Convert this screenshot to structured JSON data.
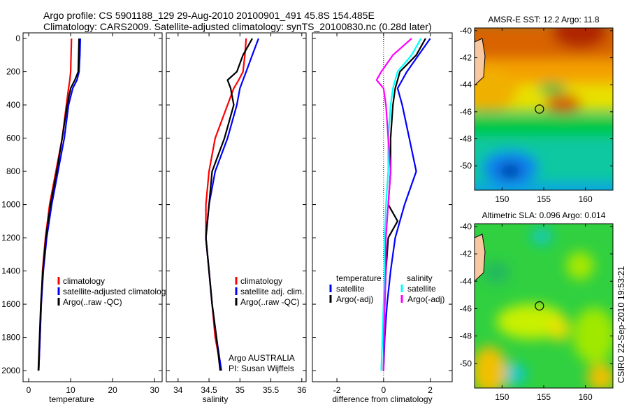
{
  "title_line1": "Argo profile: CS 5901188_129 29-Aug-2010 20100901_491 45.8S 154.485E",
  "title_line2": "Climatology: CARS2009. Satellite-adjusted climatology: synTS_20100830.nc (0.28d later)",
  "side_stamp": "CSIRO 22-Sep-2010 19:53:21",
  "colors": {
    "climatology": "#ff0000",
    "satellite": "#0000ff",
    "argo": "#000000",
    "sal_satellite": "#00ffff",
    "sal_argo": "#ff00ff"
  },
  "chart_data": [
    {
      "type": "line",
      "xlabel": "temperature",
      "ylabel": "",
      "xlim": [
        -1.33,
        31.8
      ],
      "ylim": [
        2067,
        -34
      ],
      "xticks": [
        0,
        10,
        20,
        30
      ],
      "yticks": [
        0,
        200,
        400,
        600,
        800,
        1000,
        1200,
        1400,
        1600,
        1800,
        2000
      ],
      "legend": [
        "climatology",
        "satellite-adjusted climatology",
        "Argo(..raw -QC)"
      ],
      "legend_placement": "lower-right",
      "depth": [
        0,
        100,
        200,
        250,
        300,
        400,
        600,
        800,
        1000,
        1200,
        1400,
        1600,
        1800,
        2000
      ],
      "series": [
        {
          "name": "climatology",
          "color": "#ff0000",
          "values": [
            10.2,
            10.1,
            10.0,
            9.8,
            9.5,
            9.0,
            8.0,
            6.5,
            5.0,
            4.0,
            3.3,
            3.0,
            2.7,
            2.4
          ]
        },
        {
          "name": "satellite-adjusted climatology",
          "color": "#0000ff",
          "values": [
            12.3,
            12.2,
            12.0,
            11.5,
            10.5,
            9.5,
            8.5,
            7.0,
            5.5,
            4.3,
            3.5,
            3.0,
            2.7,
            2.4
          ]
        },
        {
          "name": "Argo(..raw -QC)",
          "color": "#000000",
          "values": [
            12.0,
            11.9,
            11.8,
            11.0,
            10.0,
            9.2,
            8.0,
            6.7,
            5.2,
            4.1,
            3.4,
            2.9,
            2.6,
            2.3
          ]
        }
      ]
    },
    {
      "type": "line",
      "xlabel": "salinity",
      "xlim": [
        33.81,
        36.07
      ],
      "ylim": [
        2067,
        -34
      ],
      "xticks": [
        34,
        34.5,
        35,
        35.5,
        36
      ],
      "legend": [
        "climatology",
        "satellite adj. clim.",
        "Argo(..raw -QC)"
      ],
      "legend_placement": "lower-right",
      "annotation": [
        "Argo AUSTRALIA",
        "PI: Susan Wijffels"
      ],
      "depth": [
        0,
        100,
        200,
        250,
        300,
        400,
        600,
        800,
        1000,
        1200,
        1400,
        1600,
        1800,
        2000
      ],
      "series": [
        {
          "name": "climatology",
          "color": "#ff0000",
          "values": [
            35.1,
            35.08,
            35.05,
            34.98,
            34.9,
            34.8,
            34.6,
            34.5,
            34.45,
            34.45,
            34.5,
            34.55,
            34.6,
            34.7
          ]
        },
        {
          "name": "satellite adj. clim.",
          "color": "#0000ff",
          "values": [
            35.3,
            35.2,
            35.1,
            35.05,
            35.0,
            34.95,
            34.8,
            34.6,
            34.5,
            34.45,
            34.5,
            34.55,
            34.62,
            34.7
          ]
        },
        {
          "name": "Argo(..raw -QC)",
          "color": "#000000",
          "values": [
            35.2,
            35.05,
            34.95,
            34.8,
            34.85,
            34.9,
            34.75,
            34.55,
            34.5,
            34.45,
            34.5,
            34.55,
            34.62,
            34.68
          ]
        }
      ]
    },
    {
      "type": "line",
      "xlabel": "difference from climatology",
      "xlim": [
        -3.05,
        2.94
      ],
      "ylim": [
        2067,
        -34
      ],
      "xticks": [
        -2,
        0,
        2
      ],
      "legend_headers": [
        "temperature",
        "salinity"
      ],
      "legend": [
        "satellite",
        "Argo(-adj)",
        "satellite",
        "Argo(-adj)"
      ],
      "legend_placement": "lower-center",
      "zero_line": "dotted",
      "depth": [
        0,
        100,
        200,
        250,
        300,
        400,
        600,
        800,
        1000,
        1100,
        1200,
        1400,
        1600,
        1800,
        2000
      ],
      "series": [
        {
          "name": "temperature satellite",
          "color": "#0000ff",
          "values": [
            2.0,
            1.5,
            1.0,
            0.8,
            0.6,
            0.8,
            1.1,
            1.4,
            0.9,
            0.7,
            0.5,
            0.3,
            0.15,
            0.05,
            0.0
          ]
        },
        {
          "name": "temperature Argo(-adj)",
          "color": "#000000",
          "values": [
            1.8,
            1.4,
            0.7,
            0.6,
            0.5,
            0.4,
            0.3,
            0.3,
            0.2,
            0.6,
            0.2,
            0.1,
            0.05,
            0.02,
            0.0
          ]
        },
        {
          "name": "salinity satellite",
          "color": "#00ffff",
          "values": [
            1.6,
            1.2,
            0.6,
            0.5,
            0.4,
            0.3,
            0.2,
            0.2,
            0.1,
            0.08,
            0.05,
            0.05,
            0.0,
            -0.05,
            -0.1
          ]
        },
        {
          "name": "salinity Argo(-adj)",
          "color": "#ff00ff",
          "values": [
            1.2,
            0.4,
            -0.1,
            -0.3,
            0.0,
            0.1,
            0.2,
            0.3,
            0.2,
            0.15,
            0.1,
            0.1,
            0.05,
            0.02,
            0.0
          ]
        }
      ]
    },
    {
      "type": "heatmap",
      "title": "AMSR-E SST: 12.2 Argo: 11.8",
      "xlim": [
        146.7,
        163.3
      ],
      "ylim": [
        -51.8,
        -39.8
      ],
      "xticks": [
        150,
        155,
        160
      ],
      "yticks": [
        -40,
        -42,
        -44,
        -46,
        -48,
        -50
      ],
      "marker": {
        "lon": 154.485,
        "lat": -45.8
      }
    },
    {
      "type": "heatmap",
      "title": "Altimetric SLA: 0.096 Argo: 0.014",
      "xlim": [
        146.7,
        163.3
      ],
      "ylim": [
        -51.8,
        -39.8
      ],
      "xticks": [
        150,
        155,
        160
      ],
      "yticks": [
        -40,
        -42,
        -44,
        -46,
        -48,
        -50
      ],
      "marker": {
        "lon": 154.485,
        "lat": -45.8
      }
    }
  ]
}
